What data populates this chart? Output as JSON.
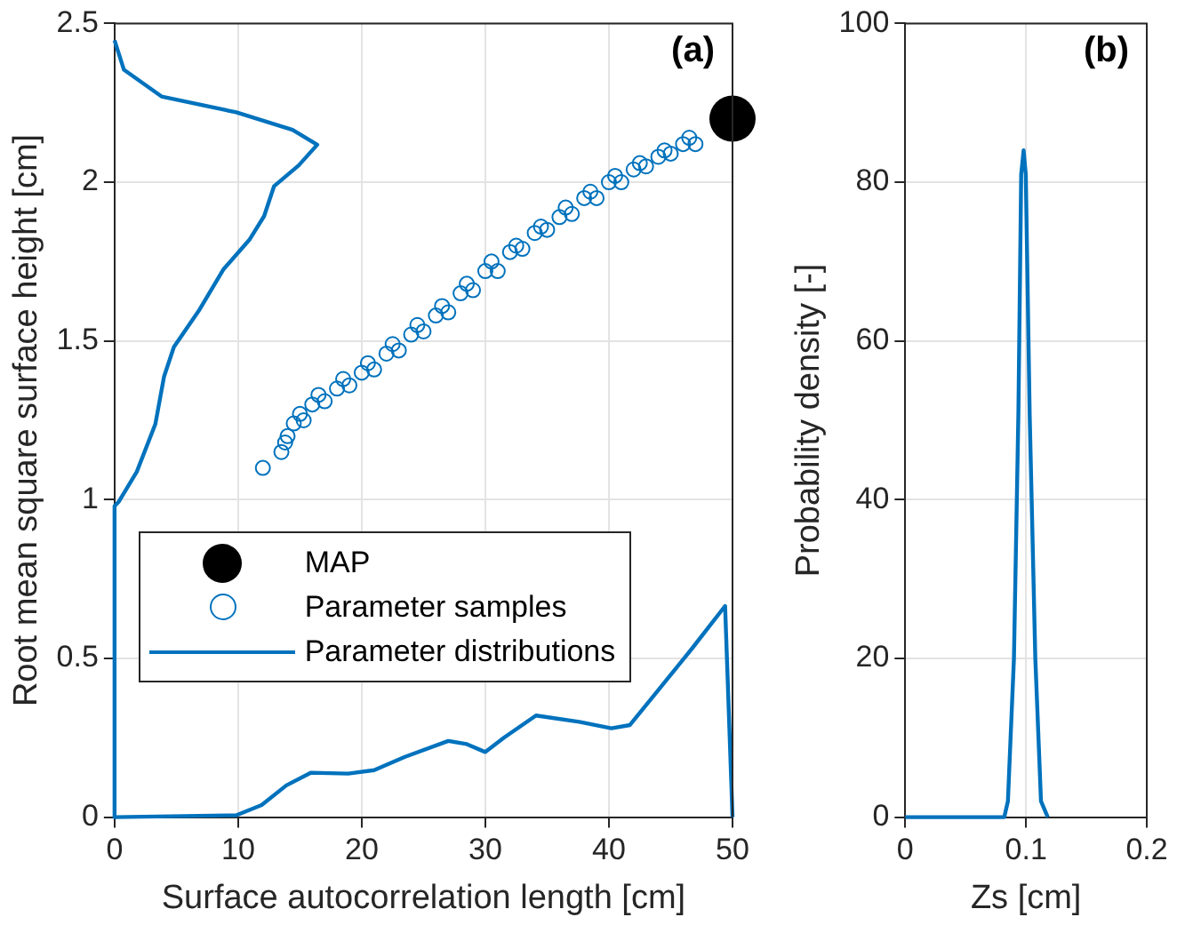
{
  "chart_data": [
    {
      "type": "scatter",
      "xlabel": "Surface autocorrelation length [cm]",
      "ylabel": "Root mean square surface height [cm]",
      "annotations": [
        "(a)"
      ],
      "xlim": [
        0,
        50
      ],
      "ylim": [
        0,
        2.5
      ],
      "xticks": [
        0,
        10,
        20,
        30,
        40,
        50
      ],
      "yticks": [
        0,
        0.5,
        1,
        1.5,
        2,
        2.5
      ],
      "grid": true,
      "legend": "bottom left",
      "series": [
        {
          "name": "MAP",
          "type": "bubble",
          "color": "#000000",
          "x": [
            50
          ],
          "values": [
            2.2
          ],
          "sizes": [
            1
          ]
        },
        {
          "name": "Parameter samples",
          "marker": "circle",
          "color": "#0072bd",
          "x": [
            12,
            13.5,
            13.8,
            14,
            14.5,
            15,
            15.3,
            16,
            16.5,
            17,
            18,
            18.5,
            19,
            20,
            20.5,
            21,
            22,
            22.5,
            23,
            24,
            24.5,
            25,
            26,
            26.5,
            27,
            28,
            28.5,
            29,
            30,
            30.5,
            31,
            32,
            32.5,
            33,
            34,
            34.5,
            35,
            36,
            36.5,
            37,
            38,
            38.5,
            39,
            40,
            40.5,
            41,
            42,
            42.5,
            43,
            44,
            44.5,
            45,
            46,
            46.5,
            47
          ],
          "values": [
            1.1,
            1.15,
            1.18,
            1.2,
            1.24,
            1.27,
            1.25,
            1.3,
            1.33,
            1.31,
            1.35,
            1.38,
            1.36,
            1.4,
            1.43,
            1.41,
            1.46,
            1.49,
            1.47,
            1.52,
            1.55,
            1.53,
            1.58,
            1.61,
            1.59,
            1.65,
            1.68,
            1.66,
            1.72,
            1.75,
            1.72,
            1.78,
            1.8,
            1.79,
            1.84,
            1.86,
            1.85,
            1.89,
            1.92,
            1.9,
            1.95,
            1.97,
            1.95,
            2.0,
            2.02,
            2.0,
            2.04,
            2.06,
            2.05,
            2.08,
            2.1,
            2.09,
            2.12,
            2.14,
            2.12
          ]
        },
        {
          "name": "Parameter distributions",
          "type": "line",
          "color": "#0072bd",
          "x": [
            0,
            9.85,
            11.9,
            13.9,
            15.9,
            18.9,
            21,
            23.5,
            27,
            28.5,
            30,
            31.5,
            34.1,
            37.6,
            40.2,
            41.7,
            44.2,
            46.7,
            49.4,
            50
          ],
          "values": [
            0,
            0.006,
            0.038,
            0.1,
            0.14,
            0.137,
            0.148,
            0.19,
            0.24,
            0.23,
            0.205,
            0.25,
            0.32,
            0.3,
            0.28,
            0.29,
            0.41,
            0.53,
            0.665,
            0
          ]
        },
        {
          "type": "line",
          "color": "#0072bd",
          "x": [
            0,
            0.76,
            3.8,
            9.85,
            14.4,
            16.4,
            14.9,
            12.9,
            12.1,
            10.9,
            8.8,
            6.8,
            4.8,
            4.0,
            3.3,
            1.8,
            0.35,
            0,
            0
          ],
          "values": [
            2.447,
            2.354,
            2.27,
            2.22,
            2.165,
            2.118,
            2.053,
            1.987,
            1.893,
            1.818,
            1.725,
            1.594,
            1.481,
            1.387,
            1.238,
            1.088,
            0.994,
            0.98,
            0
          ]
        }
      ]
    },
    {
      "type": "line",
      "xlabel": "Zs [cm]",
      "ylabel": "Probability density [-]",
      "annotations": [
        "(b)"
      ],
      "xlim": [
        0,
        0.2
      ],
      "ylim": [
        0,
        100
      ],
      "xticks": [
        0,
        0.1,
        0.2
      ],
      "yticks": [
        0,
        20,
        40,
        60,
        80,
        100
      ],
      "grid": true,
      "series": [
        {
          "color": "#0072bd",
          "x": [
            0,
            0.082,
            0.085,
            0.09,
            0.0937,
            0.096,
            0.098,
            0.0998,
            0.103,
            0.1077,
            0.1124,
            0.118
          ],
          "values": [
            0,
            0,
            2,
            20,
            51,
            81,
            84,
            81,
            51,
            20,
            2,
            0
          ]
        }
      ]
    }
  ]
}
